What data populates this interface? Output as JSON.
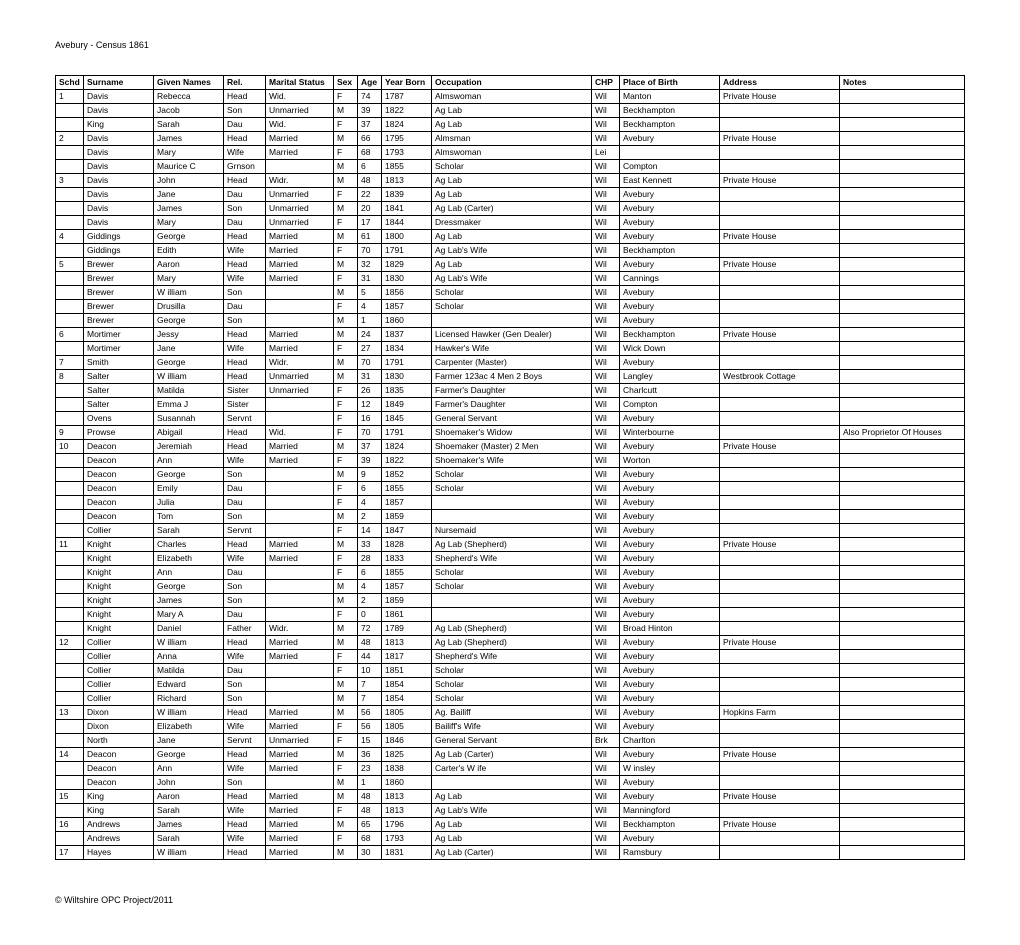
{
  "title": "Avebury - Census 1861",
  "footer": "© Wiltshire OPC Project/2011",
  "columns": [
    "Schd",
    "Surname",
    "Given Names",
    "Rel.",
    "Marital Status",
    "Sex",
    "Age",
    "Year Born",
    "Occupation",
    "CHP",
    "Place of Birth",
    "Address",
    "Notes"
  ],
  "rows": [
    [
      "1",
      "Davis",
      "Rebecca",
      "Head",
      "Wid.",
      "F",
      "74",
      "1787",
      "Almswoman",
      "Wil",
      "Manton",
      "Private House",
      ""
    ],
    [
      "",
      "Davis",
      "Jacob",
      "Son",
      "Unmarried",
      "M",
      "39",
      "1822",
      "Ag Lab",
      "Wil",
      "Beckhampton",
      "",
      ""
    ],
    [
      "",
      "King",
      "Sarah",
      "Dau",
      "Wid.",
      "F",
      "37",
      "1824",
      "Ag Lab",
      "Wil",
      "Beckhampton",
      "",
      ""
    ],
    [
      "2",
      "Davis",
      "James",
      "Head",
      "Married",
      "M",
      "66",
      "1795",
      "Almsman",
      "Wil",
      "Avebury",
      "Private House",
      ""
    ],
    [
      "",
      "Davis",
      "Mary",
      "Wife",
      "Married",
      "F",
      "68",
      "1793",
      "Almswoman",
      "Lei",
      "",
      "",
      ""
    ],
    [
      "",
      "Davis",
      "Maurice C",
      "Grnson",
      "",
      "M",
      "6",
      "1855",
      "Scholar",
      "Wil",
      "Compton",
      "",
      ""
    ],
    [
      "3",
      "Davis",
      "John",
      "Head",
      "Widr.",
      "M",
      "48",
      "1813",
      "Ag Lab",
      "Wil",
      "East Kennett",
      "Private House",
      ""
    ],
    [
      "",
      "Davis",
      "Jane",
      "Dau",
      "Unmarried",
      "F",
      "22",
      "1839",
      "Ag Lab",
      "Wil",
      "Avebury",
      "",
      ""
    ],
    [
      "",
      "Davis",
      "James",
      "Son",
      "Unmarried",
      "M",
      "20",
      "1841",
      "Ag Lab (Carter)",
      "Wil",
      "Avebury",
      "",
      ""
    ],
    [
      "",
      "Davis",
      "Mary",
      "Dau",
      "Unmarried",
      "F",
      "17",
      "1844",
      "Dressmaker",
      "Wil",
      "Avebury",
      "",
      ""
    ],
    [
      "4",
      "Giddings",
      "George",
      "Head",
      "Married",
      "M",
      "61",
      "1800",
      "Ag Lab",
      "Wil",
      "Avebury",
      "Private House",
      ""
    ],
    [
      "",
      "Giddings",
      "Edith",
      "Wife",
      "Married",
      "F",
      "70",
      "1791",
      "Ag Lab's Wife",
      "Wil",
      "Beckhampton",
      "",
      ""
    ],
    [
      "5",
      "Brewer",
      "Aaron",
      "Head",
      "Married",
      "M",
      "32",
      "1829",
      "Ag Lab",
      "Wil",
      "Avebury",
      "Private House",
      ""
    ],
    [
      "",
      "Brewer",
      "Mary",
      "Wife",
      "Married",
      "F",
      "31",
      "1830",
      "Ag Lab's Wife",
      "Wil",
      "Cannings",
      "",
      ""
    ],
    [
      "",
      "Brewer",
      "W illiam",
      "Son",
      "",
      "M",
      "5",
      "1856",
      "Scholar",
      "Wil",
      "Avebury",
      "",
      ""
    ],
    [
      "",
      "Brewer",
      "Drusilla",
      "Dau",
      "",
      "F",
      "4",
      "1857",
      "Scholar",
      "Wil",
      "Avebury",
      "",
      ""
    ],
    [
      "",
      "Brewer",
      "George",
      "Son",
      "",
      "M",
      "1",
      "1860",
      "",
      "Wil",
      "Avebury",
      "",
      ""
    ],
    [
      "6",
      "Mortimer",
      "Jessy",
      "Head",
      "Married",
      "M",
      "24",
      "1837",
      "Licensed Hawker (Gen Dealer)",
      "Wil",
      "Beckhampton",
      "Private House",
      ""
    ],
    [
      "",
      "Mortimer",
      "Jane",
      "Wife",
      "Married",
      "F",
      "27",
      "1834",
      "Hawker's Wife",
      "Wil",
      "Wick Down",
      "",
      ""
    ],
    [
      "7",
      "Smith",
      "George",
      "Head",
      "Widr.",
      "M",
      "70",
      "1791",
      "Carpenter (Master)",
      "Wil",
      "Avebury",
      "",
      ""
    ],
    [
      "8",
      "Salter",
      "W illiam",
      "Head",
      "Unmarried",
      "M",
      "31",
      "1830",
      "Farmer 123ac 4 Men 2 Boys",
      "Wil",
      "Langley",
      "Westbrook Cottage",
      ""
    ],
    [
      "",
      "Salter",
      "Matilda",
      "Sister",
      "Unmarried",
      "F",
      "26",
      "1835",
      "Farmer's Daughter",
      "Wil",
      "Charlcutt",
      "",
      ""
    ],
    [
      "",
      "Salter",
      "Emma J",
      "Sister",
      "",
      "F",
      "12",
      "1849",
      "Farmer's Daughter",
      "Wil",
      "Compton",
      "",
      ""
    ],
    [
      "",
      "Ovens",
      "Susannah",
      "Servnt",
      "",
      "F",
      "16",
      "1845",
      "General Servant",
      "Wil",
      "Avebury",
      "",
      ""
    ],
    [
      "9",
      "Prowse",
      "Abigail",
      "Head",
      "Wid.",
      "F",
      "70",
      "1791",
      "Shoemaker's Widow",
      "Wil",
      "Winterbourne",
      "",
      "Also Proprietor Of Houses"
    ],
    [
      "10",
      "Deacon",
      "Jeremiah",
      "Head",
      "Married",
      "M",
      "37",
      "1824",
      "Shoemaker (Master) 2 Men",
      "Wil",
      "Avebury",
      "Private House",
      ""
    ],
    [
      "",
      "Deacon",
      "Ann",
      "Wife",
      "Married",
      "F",
      "39",
      "1822",
      "Shoemaker's Wife",
      "Wil",
      "Worton",
      "",
      ""
    ],
    [
      "",
      "Deacon",
      "George",
      "Son",
      "",
      "M",
      "9",
      "1852",
      "Scholar",
      "Wil",
      "Avebury",
      "",
      ""
    ],
    [
      "",
      "Deacon",
      "Emily",
      "Dau",
      "",
      "F",
      "6",
      "1855",
      "Scholar",
      "Wil",
      "Avebury",
      "",
      ""
    ],
    [
      "",
      "Deacon",
      "Julia",
      "Dau",
      "",
      "F",
      "4",
      "1857",
      "",
      "Wil",
      "Avebury",
      "",
      ""
    ],
    [
      "",
      "Deacon",
      "Tom",
      "Son",
      "",
      "M",
      "2",
      "1859",
      "",
      "Wil",
      "Avebury",
      "",
      ""
    ],
    [
      "",
      "Collier",
      "Sarah",
      "Servnt",
      "",
      "F",
      "14",
      "1847",
      "Nursemaid",
      "Wil",
      "Avebury",
      "",
      ""
    ],
    [
      "11",
      "Knight",
      "Charles",
      "Head",
      "Married",
      "M",
      "33",
      "1828",
      "Ag Lab (Shepherd)",
      "Wil",
      "Avebury",
      "Private House",
      ""
    ],
    [
      "",
      "Knight",
      "Elizabeth",
      "Wife",
      "Married",
      "F",
      "28",
      "1833",
      "Shepherd's Wife",
      "Wil",
      "Avebury",
      "",
      ""
    ],
    [
      "",
      "Knight",
      "Ann",
      "Dau",
      "",
      "F",
      "6",
      "1855",
      "Scholar",
      "Wil",
      "Avebury",
      "",
      ""
    ],
    [
      "",
      "Knight",
      "George",
      "Son",
      "",
      "M",
      "4",
      "1857",
      "Scholar",
      "Wil",
      "Avebury",
      "",
      ""
    ],
    [
      "",
      "Knight",
      "James",
      "Son",
      "",
      "M",
      "2",
      "1859",
      "",
      "Wil",
      "Avebury",
      "",
      ""
    ],
    [
      "",
      "Knight",
      "Mary A",
      "Dau",
      "",
      "F",
      "0",
      "1861",
      "",
      "Wil",
      "Avebury",
      "",
      ""
    ],
    [
      "",
      "Knight",
      "Daniel",
      "Father",
      "Widr.",
      "M",
      "72",
      "1789",
      "Ag Lab (Shepherd)",
      "Wil",
      "Broad Hinton",
      "",
      ""
    ],
    [
      "12",
      "Collier",
      "W illiam",
      "Head",
      "Married",
      "M",
      "48",
      "1813",
      "Ag Lab (Shepherd)",
      "Wil",
      "Avebury",
      "Private House",
      ""
    ],
    [
      "",
      "Collier",
      "Anna",
      "Wife",
      "Married",
      "F",
      "44",
      "1817",
      "Shepherd's Wife",
      "Wil",
      "Avebury",
      "",
      ""
    ],
    [
      "",
      "Collier",
      "Matilda",
      "Dau",
      "",
      "F",
      "10",
      "1851",
      "Scholar",
      "Wil",
      "Avebury",
      "",
      ""
    ],
    [
      "",
      "Collier",
      "Edward",
      "Son",
      "",
      "M",
      "7",
      "1854",
      "Scholar",
      "Wil",
      "Avebury",
      "",
      ""
    ],
    [
      "",
      "Collier",
      "Richard",
      "Son",
      "",
      "M",
      "7",
      "1854",
      "Scholar",
      "Wil",
      "Avebury",
      "",
      ""
    ],
    [
      "13",
      "Dixon",
      "W illiam",
      "Head",
      "Married",
      "M",
      "56",
      "1805",
      "Ag. Bailiff",
      "Wil",
      "Avebury",
      "Hopkins Farm",
      ""
    ],
    [
      "",
      "Dixon",
      "Elizabeth",
      "Wife",
      "Married",
      "F",
      "56",
      "1805",
      "Bailiff's Wife",
      "Wil",
      "Avebury",
      "",
      ""
    ],
    [
      "",
      "North",
      "Jane",
      "Servnt",
      "Unmarried",
      "F",
      "15",
      "1846",
      "General Servant",
      "Brk",
      "Charlton",
      "",
      ""
    ],
    [
      "14",
      "Deacon",
      "George",
      "Head",
      "Married",
      "M",
      "36",
      "1825",
      "Ag Lab (Carter)",
      "Wil",
      "Avebury",
      "Private House",
      ""
    ],
    [
      "",
      "Deacon",
      "Ann",
      "Wife",
      "Married",
      "F",
      "23",
      "1838",
      "Carter's W ife",
      "Wil",
      "W insley",
      "",
      ""
    ],
    [
      "",
      "Deacon",
      "John",
      "Son",
      "",
      "M",
      "1",
      "1860",
      "",
      "Wil",
      "Avebury",
      "",
      ""
    ],
    [
      "15",
      "King",
      "Aaron",
      "Head",
      "Married",
      "M",
      "48",
      "1813",
      "Ag Lab",
      "Wil",
      "Avebury",
      "Private House",
      ""
    ],
    [
      "",
      "King",
      "Sarah",
      "Wife",
      "Married",
      "F",
      "48",
      "1813",
      "Ag Lab's Wife",
      "Wil",
      "Manningford",
      "",
      ""
    ],
    [
      "16",
      "Andrews",
      "James",
      "Head",
      "Married",
      "M",
      "65",
      "1796",
      "Ag Lab",
      "Wil",
      "Beckhampton",
      "Private House",
      ""
    ],
    [
      "",
      "Andrews",
      "Sarah",
      "Wife",
      "Married",
      "F",
      "68",
      "1793",
      "Ag Lab",
      "Wil",
      "Avebury",
      "",
      ""
    ],
    [
      "17",
      "Hayes",
      "W illiam",
      "Head",
      "Married",
      "M",
      "30",
      "1831",
      "Ag Lab (Carter)",
      "Wil",
      "Ramsbury",
      "",
      ""
    ]
  ]
}
